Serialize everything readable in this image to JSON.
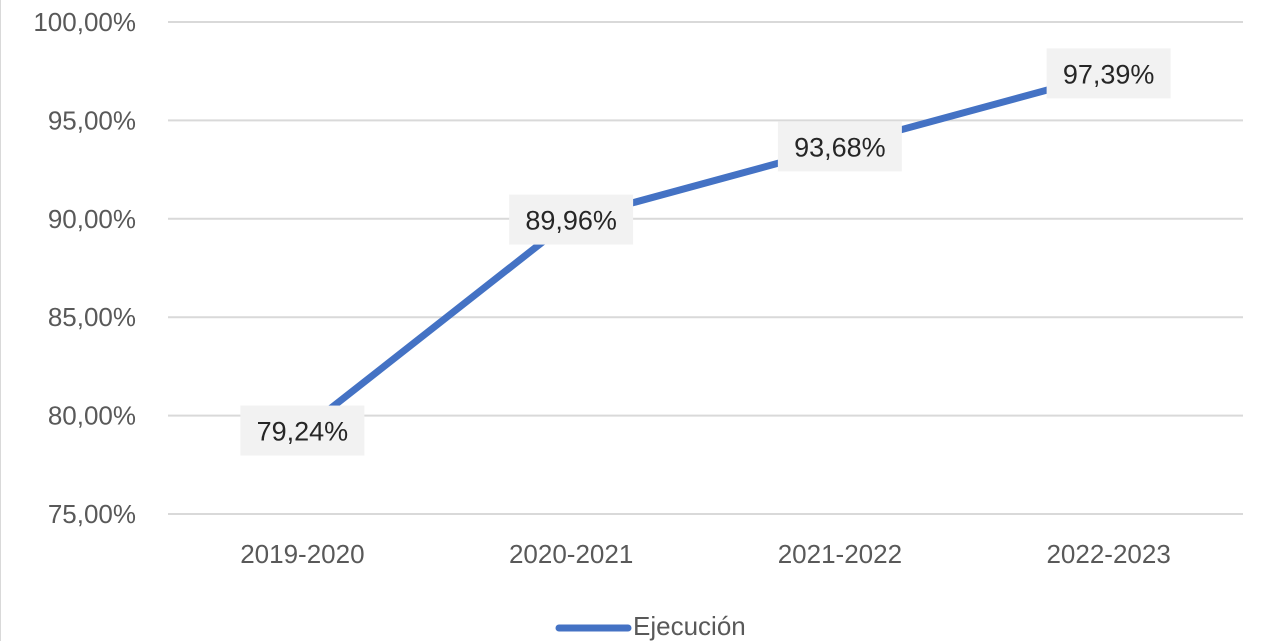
{
  "chart_data": {
    "type": "line",
    "categories": [
      "2019-2020",
      "2020-2021",
      "2021-2022",
      "2022-2023"
    ],
    "series": [
      {
        "name": "Ejecución",
        "values": [
          79.24,
          89.96,
          93.68,
          97.39
        ],
        "color": "#4472c4"
      }
    ],
    "data_labels": [
      "79,24%",
      "89,96%",
      "93,68%",
      "97,39%"
    ],
    "y_ticks": [
      {
        "value": 100,
        "label": "100,00%"
      },
      {
        "value": 95,
        "label": "95,00%"
      },
      {
        "value": 90,
        "label": "90,00%"
      },
      {
        "value": 85,
        "label": "85,00%"
      },
      {
        "value": 80,
        "label": "80,00%"
      },
      {
        "value": 75,
        "label": "75,00%"
      }
    ],
    "ylim": [
      75,
      100
    ],
    "grid": true,
    "legend_position": "bottom",
    "colors": {
      "gridline": "#d9d9d9",
      "label_background": "#f2f2f2"
    }
  }
}
